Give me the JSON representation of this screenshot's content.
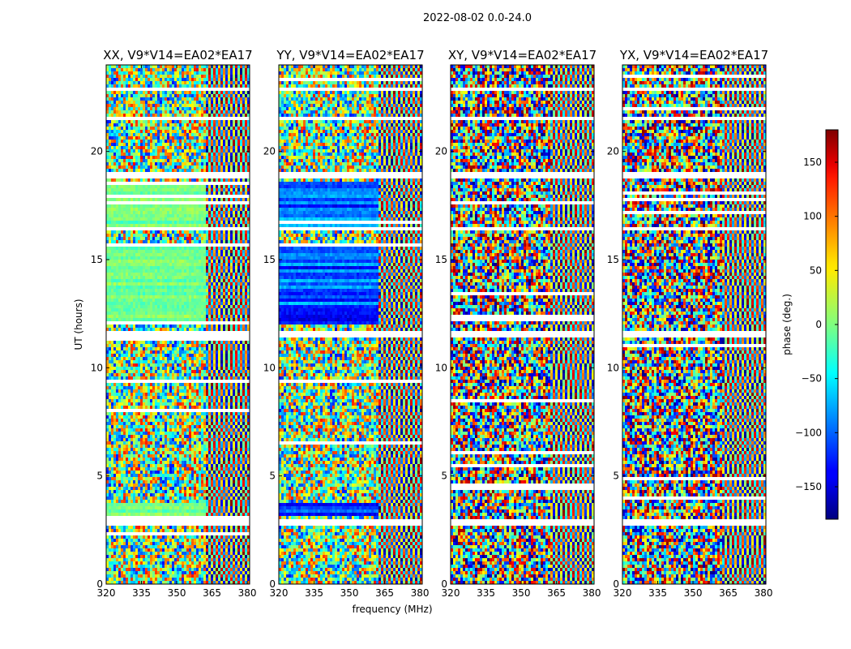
{
  "chart_data": {
    "type": "heatmap",
    "suptitle": "2022-08-02 0.0-24.0",
    "xlabel": "frequency (MHz)",
    "ylabel": "UT (hours)",
    "xlim": [
      320,
      381
    ],
    "ylim": [
      0,
      24
    ],
    "xticks": [
      "320",
      "335",
      "350",
      "365",
      "380"
    ],
    "yticks": [
      "0",
      "5",
      "10",
      "15",
      "20"
    ],
    "colormap": "jet",
    "colorbar": {
      "label": "phase (deg.)",
      "range": [
        -180,
        180
      ],
      "ticks": [
        "−150",
        "−100",
        "−50",
        "0",
        "50",
        "100",
        "150"
      ]
    },
    "panels": [
      {
        "title": "XX, V9*V14=EA02*EA17",
        "polarization": "XX"
      },
      {
        "title": "YY, V9*V14=EA02*EA17",
        "polarization": "YY"
      },
      {
        "title": "XY, V9*V14=EA02*EA17",
        "polarization": "XY"
      },
      {
        "title": "YX, V9*V14=EA02*EA17",
        "polarization": "YX"
      }
    ],
    "flagged_gaps_ut": [
      [
        2.7,
        2.95
      ],
      [
        11.4,
        11.7
      ],
      [
        16.3,
        16.45
      ],
      [
        18.8,
        19.0
      ],
      [
        21.5,
        21.6
      ],
      [
        22.8,
        23.0
      ],
      [
        0.3,
        0.35
      ]
    ],
    "colors": {
      "flagged": "#ffffff",
      "axes": "#000000"
    }
  }
}
